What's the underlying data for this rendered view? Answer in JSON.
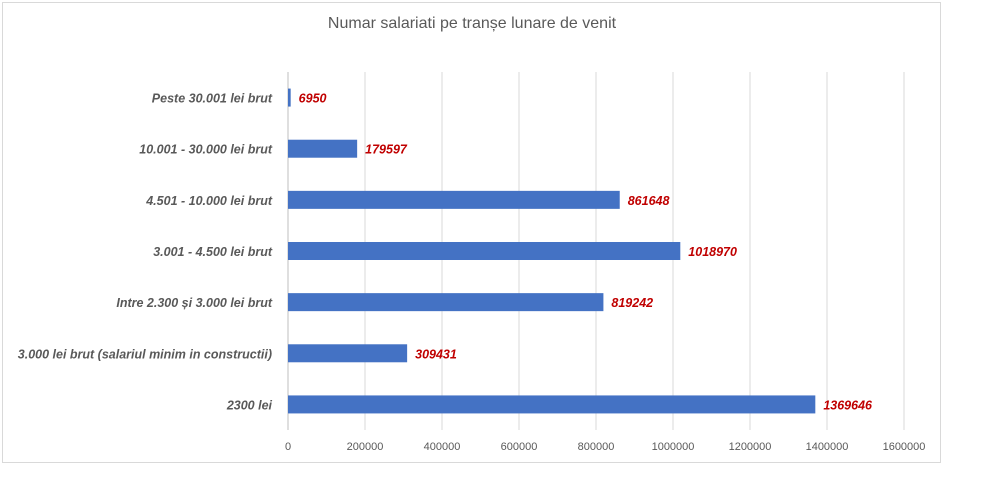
{
  "chart_data": {
    "type": "bar",
    "orientation": "horizontal",
    "title": "Numar salariati pe tranșe lunare de venit",
    "categories": [
      "Peste 30.001 lei brut",
      "10.001 - 30.000 lei brut",
      "4.501 - 10.000 lei brut",
      "3.001 - 4.500 lei brut",
      "Intre 2.300 și 3.000  lei brut",
      "3.000 lei brut (salariul minim in constructii)",
      "2300 lei"
    ],
    "values": [
      6950,
      179597,
      861648,
      1018970,
      819242,
      309431,
      1369646
    ],
    "xlim": [
      0,
      1600000
    ],
    "xticks": [
      "0",
      "200000",
      "400000",
      "600000",
      "800000",
      "1000000",
      "1200000",
      "1400000",
      "1600000"
    ],
    "grid": true,
    "bar_color": "#4472c4",
    "label_color": "#c00000"
  }
}
